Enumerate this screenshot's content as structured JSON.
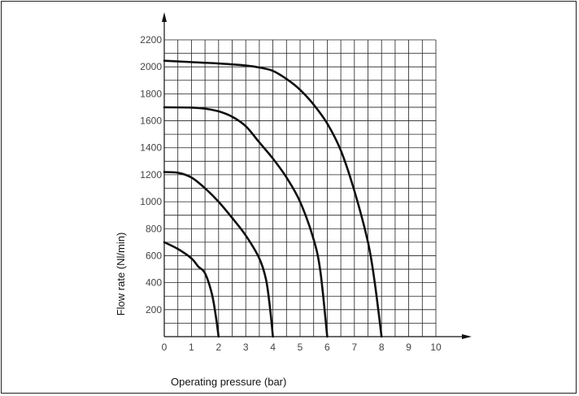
{
  "chart_data": {
    "type": "line",
    "title": "",
    "xlabel": "Operating pressure (bar)",
    "ylabel": "Flow rate (Nl/min)",
    "xlim": [
      0,
      10
    ],
    "ylim": [
      0,
      2200
    ],
    "x_ticks": [
      "0",
      "1",
      "2",
      "3",
      "4",
      "5",
      "6",
      "7",
      "8",
      "9",
      "10"
    ],
    "y_ticks": [
      "200",
      "400",
      "600",
      "800",
      "1000",
      "1200",
      "1400",
      "1600",
      "1800",
      "2000",
      "2200"
    ],
    "grid": true,
    "minor_grid": {
      "x_step": 0.5,
      "y_step": 100
    },
    "line_color": "#111111",
    "series": [
      {
        "points": [
          [
            0,
            700
          ],
          [
            0.5,
            650
          ],
          [
            1.0,
            580
          ],
          [
            1.25,
            520
          ],
          [
            1.5,
            470
          ],
          [
            1.75,
            320
          ],
          [
            1.9,
            150
          ],
          [
            2.0,
            0
          ]
        ]
      },
      {
        "points": [
          [
            0,
            1220
          ],
          [
            0.5,
            1215
          ],
          [
            1.0,
            1180
          ],
          [
            1.5,
            1100
          ],
          [
            2.0,
            1000
          ],
          [
            2.5,
            880
          ],
          [
            3.0,
            750
          ],
          [
            3.5,
            580
          ],
          [
            3.75,
            420
          ],
          [
            3.9,
            200
          ],
          [
            4.0,
            0
          ]
        ]
      },
      {
        "points": [
          [
            0,
            1700
          ],
          [
            1.0,
            1698
          ],
          [
            1.5,
            1690
          ],
          [
            2.0,
            1670
          ],
          [
            2.5,
            1630
          ],
          [
            3.0,
            1560
          ],
          [
            3.5,
            1440
          ],
          [
            4.0,
            1320
          ],
          [
            4.5,
            1180
          ],
          [
            5.0,
            1000
          ],
          [
            5.5,
            720
          ],
          [
            5.75,
            480
          ],
          [
            6.0,
            0
          ]
        ]
      },
      {
        "points": [
          [
            0,
            2045
          ],
          [
            1.0,
            2035
          ],
          [
            2.0,
            2025
          ],
          [
            3.0,
            2010
          ],
          [
            3.5,
            1995
          ],
          [
            4.0,
            1970
          ],
          [
            4.5,
            1910
          ],
          [
            5.0,
            1830
          ],
          [
            5.5,
            1720
          ],
          [
            6.0,
            1580
          ],
          [
            6.5,
            1380
          ],
          [
            7.0,
            1080
          ],
          [
            7.5,
            700
          ],
          [
            7.75,
            400
          ],
          [
            8.0,
            0
          ]
        ]
      }
    ]
  }
}
